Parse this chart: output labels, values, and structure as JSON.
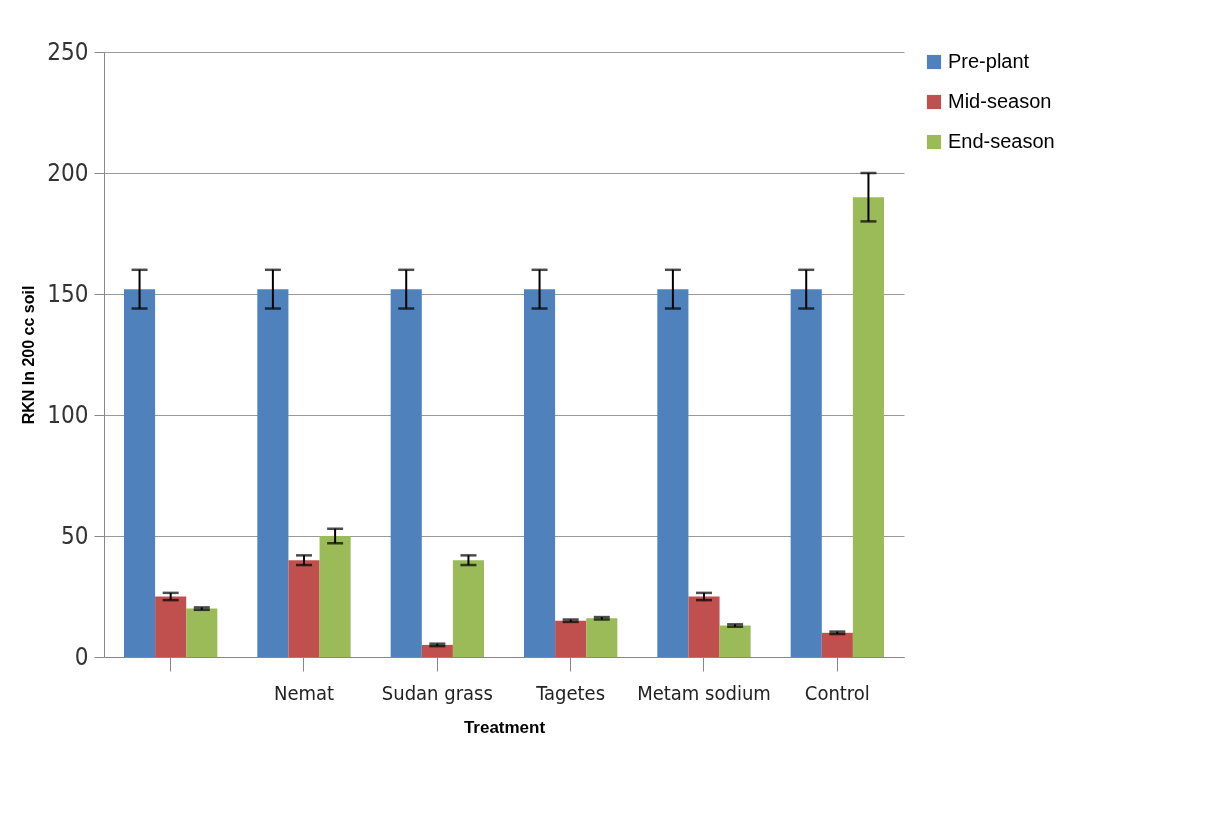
{
  "chart_data": {
    "type": "bar",
    "xlabel": "Treatment",
    "ylabel": "RKN In 200 cc soil",
    "categories": [
      null,
      "Nemat",
      "Sudan grass",
      "Tagetes",
      "Metam sodium",
      "Control"
    ],
    "series": [
      {
        "name": "Pre-plant",
        "color": "#4f81bd",
        "values": [
          152,
          152,
          152,
          152,
          152,
          152
        ],
        "errors": [
          8,
          8,
          8,
          8,
          8,
          8
        ]
      },
      {
        "name": "Mid-season",
        "color": "#c0504d",
        "values": [
          25,
          40,
          5,
          15,
          25,
          10
        ],
        "errors": [
          1.5,
          2,
          0.5,
          0.5,
          1.5,
          0.5
        ]
      },
      {
        "name": "End-season",
        "color": "#9bbb59",
        "values": [
          20,
          50,
          40,
          16,
          13,
          190
        ],
        "errors": [
          0.5,
          3,
          2,
          0.5,
          0.5,
          10
        ]
      }
    ],
    "ylim": [
      0,
      250
    ],
    "yticks": [
      0,
      50,
      100,
      150,
      200,
      250
    ],
    "grid": "y",
    "legend": "right"
  }
}
